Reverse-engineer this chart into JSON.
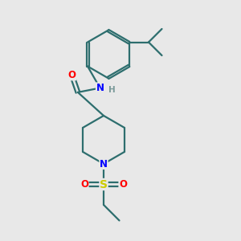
{
  "bg_color": "#e8e8e8",
  "bond_color": "#2d6e6e",
  "bond_width": 1.6,
  "atom_colors": {
    "O": "#ff0000",
    "N": "#0000ff",
    "S": "#cccc00",
    "H": "#7a9a9a",
    "C": "#2d6e6e"
  },
  "font_size_atom": 8.5,
  "font_size_H": 7.5,
  "xlim": [
    0,
    10
  ],
  "ylim": [
    0,
    10
  ]
}
